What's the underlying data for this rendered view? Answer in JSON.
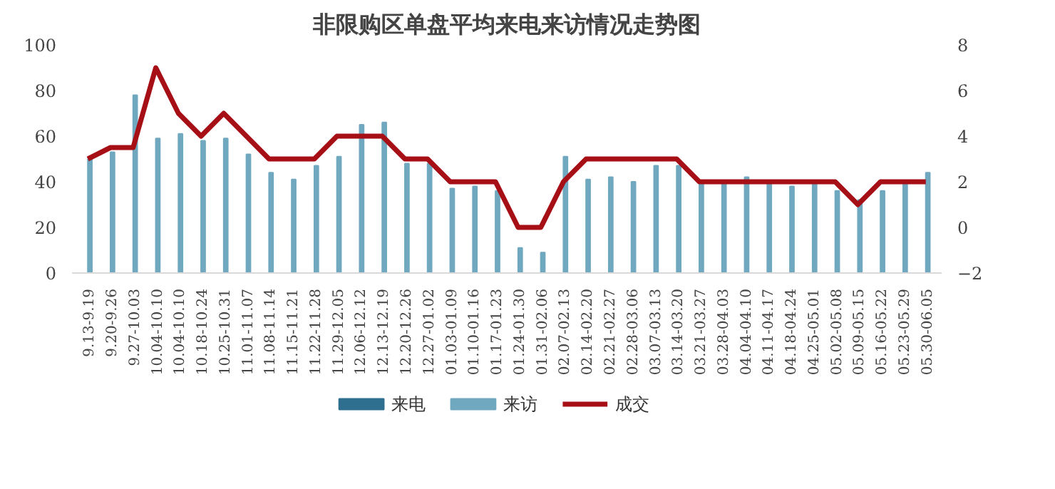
{
  "chart_data": {
    "type": "bar",
    "title": "非限购区单盘平均来电来访情况走势图",
    "categories": [
      "9.13-9.19",
      "9.20-9.26",
      "9.27-10.03",
      "10.04-10.10",
      "10.04-10.10",
      "10.18-10.24",
      "10.25-10.31",
      "11.01-11.07",
      "11.08-11.14",
      "11.15-11.21",
      "11.22-11.28",
      "11.29-12.05",
      "12.06-12.12",
      "12.13-12.19",
      "12.20-12.26",
      "12.27-01.02",
      "01.03-01.09",
      "01.10-01.16",
      "01.17-01.23",
      "01.24-01.30",
      "01.31-02.06",
      "02.07-02.13",
      "02.14-02.20",
      "02.21-02.27",
      "02.28-03.06",
      "03.07-03.13",
      "03.14-03.20",
      "03.21-03.27",
      "03.28-04.03",
      "04.04-04.10",
      "04.11-04.17",
      "04.18-04.24",
      "04.25-05.01",
      "05.02-05.08",
      "05.09-05.15",
      "05.16-05.22",
      "05.23-05.29",
      "05.30-06.05"
    ],
    "series": [
      {
        "name": "来电",
        "color": "#2e6e8e",
        "values": [
          null,
          null,
          null,
          null,
          null,
          null,
          null,
          null,
          null,
          null,
          null,
          null,
          null,
          null,
          null,
          null,
          null,
          null,
          null,
          null,
          null,
          null,
          null,
          null,
          null,
          null,
          null,
          null,
          null,
          null,
          null,
          null,
          null,
          null,
          null,
          null,
          null,
          null
        ]
      },
      {
        "name": "来访",
        "color": "#6fa8bf",
        "values": [
          50,
          53,
          78,
          59,
          61,
          58,
          59,
          52,
          44,
          41,
          47,
          51,
          65,
          66,
          48,
          48,
          37,
          38,
          36,
          11,
          9,
          51,
          41,
          42,
          40,
          47,
          47,
          40,
          40,
          42,
          40,
          38,
          40,
          36,
          32,
          36,
          40,
          44
        ]
      },
      {
        "name": "成交",
        "type": "line",
        "axis": "y2",
        "color": "#a50f15",
        "values": [
          3,
          3.5,
          3.5,
          7,
          5,
          4,
          5,
          4,
          3,
          3,
          3,
          4,
          4,
          4,
          3,
          3,
          2,
          2,
          2,
          0,
          0,
          2,
          3,
          3,
          3,
          3,
          3,
          2,
          2,
          2,
          2,
          2,
          2,
          2,
          1,
          2,
          2,
          2
        ]
      }
    ],
    "ylim": [
      0,
      100
    ],
    "yticks": [
      0,
      20,
      40,
      60,
      80,
      100
    ],
    "y2lim": [
      -2,
      8
    ],
    "y2ticks": [
      -2,
      0,
      2,
      4,
      6,
      8
    ],
    "grid": false,
    "legend": "bottom"
  }
}
